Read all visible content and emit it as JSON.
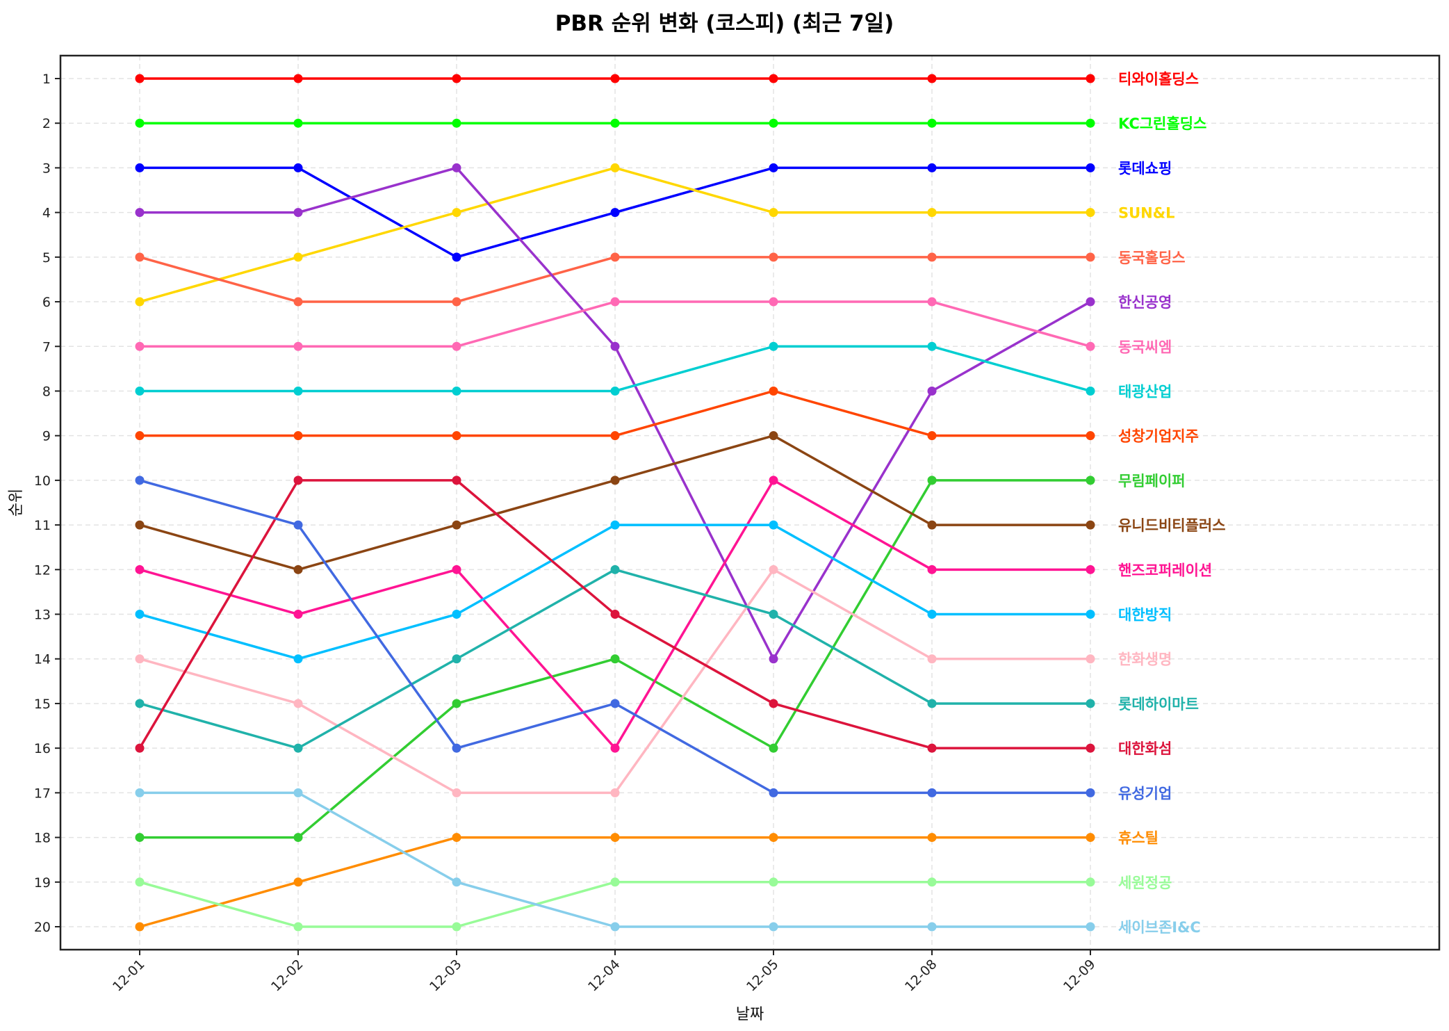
{
  "title": "PBR 순위 변화 (코스피) (최근 7일)",
  "chart_data": {
    "type": "line",
    "title": "PBR 순위 변화 (코스피) (최근 7일)",
    "xlabel": "날짜",
    "ylabel": "순위",
    "x": [
      "12-01",
      "12-02",
      "12-03",
      "12-04",
      "12-05",
      "12-08",
      "12-09"
    ],
    "yticks": [
      1,
      2,
      3,
      4,
      5,
      6,
      7,
      8,
      9,
      10,
      11,
      12,
      13,
      14,
      15,
      16,
      17,
      18,
      19,
      20
    ],
    "ylim": [
      20.5,
      0.5
    ],
    "y_inverted": true,
    "grid": true,
    "legend": "inline labels at right end of each line",
    "series": [
      {
        "name": "티와이홀딩스",
        "color": "#FF0000",
        "values": [
          1,
          1,
          1,
          1,
          1,
          1,
          1
        ]
      },
      {
        "name": "KC그린홀딩스",
        "color": "#00FF00",
        "values": [
          2,
          2,
          2,
          2,
          2,
          2,
          2
        ]
      },
      {
        "name": "롯데쇼핑",
        "color": "#0000FF",
        "values": [
          3,
          3,
          5,
          4,
          3,
          3,
          3
        ]
      },
      {
        "name": "SUN&L",
        "color": "#FFD700",
        "values": [
          6,
          5,
          4,
          3,
          4,
          4,
          4
        ]
      },
      {
        "name": "동국홀딩스",
        "color": "#FF6347",
        "values": [
          5,
          6,
          6,
          5,
          5,
          5,
          5
        ]
      },
      {
        "name": "한신공영",
        "color": "#9932CC",
        "values": [
          4,
          4,
          3,
          7,
          14,
          8,
          6
        ]
      },
      {
        "name": "동국씨엠",
        "color": "#FF69B4",
        "values": [
          7,
          7,
          7,
          6,
          6,
          6,
          7
        ]
      },
      {
        "name": "태광산업",
        "color": "#00CED1",
        "values": [
          8,
          8,
          8,
          8,
          7,
          7,
          8
        ]
      },
      {
        "name": "성창기업지주",
        "color": "#FF4500",
        "values": [
          9,
          9,
          9,
          9,
          8,
          9,
          9
        ]
      },
      {
        "name": "무림페이퍼",
        "color": "#32CD32",
        "values": [
          18,
          18,
          15,
          14,
          16,
          10,
          10
        ]
      },
      {
        "name": "유니드비티플러스",
        "color": "#8B4513",
        "values": [
          11,
          12,
          11,
          10,
          9,
          11,
          11
        ]
      },
      {
        "name": "핸즈코퍼레이션",
        "color": "#FF1493",
        "values": [
          12,
          13,
          12,
          16,
          10,
          12,
          12
        ]
      },
      {
        "name": "대한방직",
        "color": "#00BFFF",
        "values": [
          13,
          14,
          13,
          11,
          11,
          13,
          13
        ]
      },
      {
        "name": "한화생명",
        "color": "#FFB6C1",
        "values": [
          14,
          15,
          17,
          17,
          12,
          14,
          14
        ]
      },
      {
        "name": "롯데하이마트",
        "color": "#20B2AA",
        "values": [
          15,
          16,
          14,
          12,
          13,
          15,
          15
        ]
      },
      {
        "name": "대한화섬",
        "color": "#DC143C",
        "values": [
          16,
          10,
          10,
          13,
          15,
          16,
          16
        ]
      },
      {
        "name": "유성기업",
        "color": "#4169E1",
        "values": [
          10,
          11,
          16,
          15,
          17,
          17,
          17
        ]
      },
      {
        "name": "휴스틸",
        "color": "#FF8C00",
        "values": [
          20,
          19,
          18,
          18,
          18,
          18,
          18
        ]
      },
      {
        "name": "세원정공",
        "color": "#98FB98",
        "values": [
          19,
          20,
          20,
          19,
          19,
          19,
          19
        ]
      },
      {
        "name": "세이브존I&C",
        "color": "#87CEEB",
        "values": [
          17,
          17,
          19,
          20,
          20,
          20,
          20
        ]
      }
    ]
  }
}
